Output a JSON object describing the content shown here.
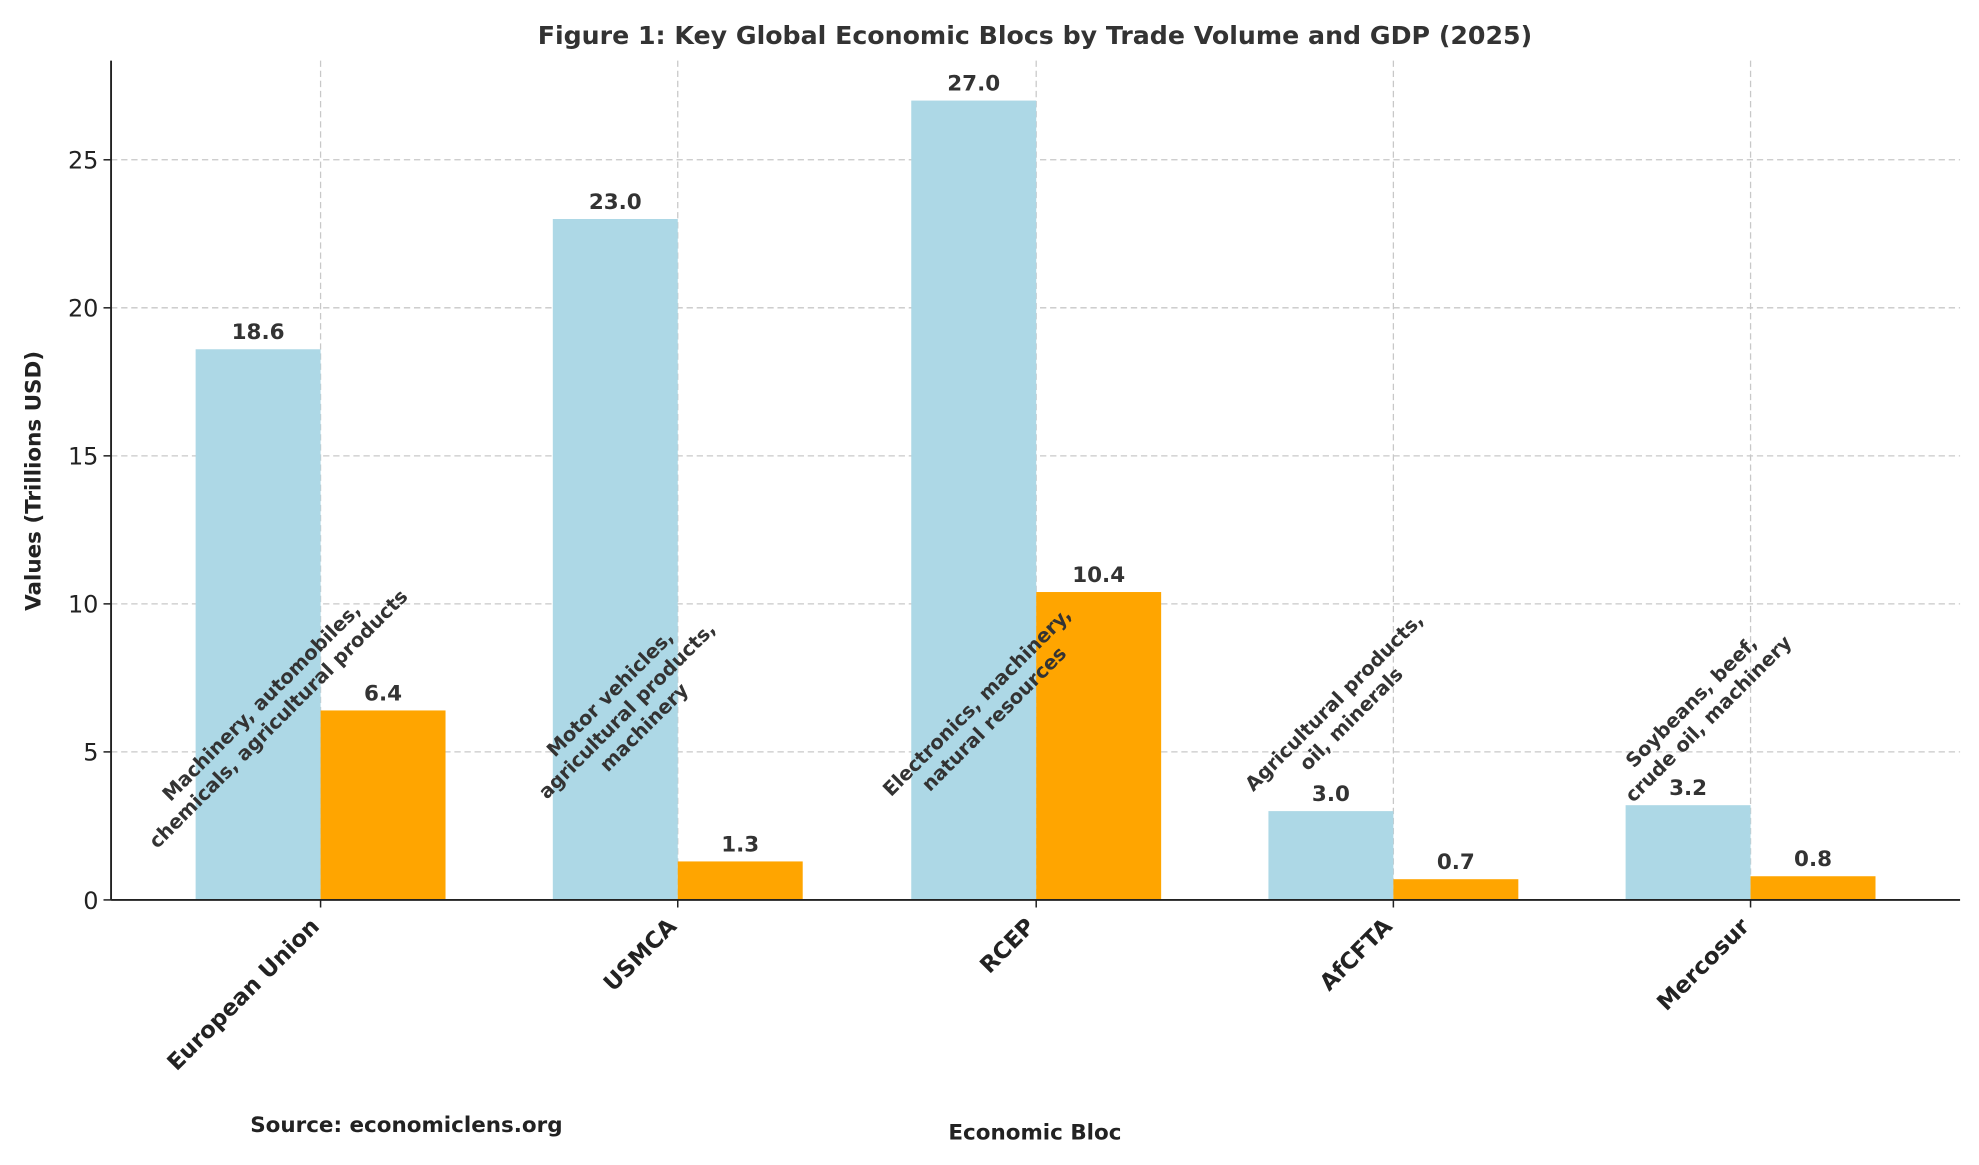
{
  "chart_data": {
    "type": "bar",
    "title": "Figure 1: Key Global Economic Blocs by Trade Volume and GDP (2025)",
    "xlabel": "Economic Bloc",
    "ylabel": "Values (Trillions USD)",
    "source": "Source: economiclens.org",
    "categories": [
      "European Union",
      "USMCA",
      "RCEP",
      "AfCFTA",
      "Mercosur"
    ],
    "series": [
      {
        "values": [
          18.6,
          23.0,
          27.0,
          3.0,
          3.2
        ],
        "color": "#add8e6"
      },
      {
        "values": [
          6.4,
          1.3,
          10.4,
          0.7,
          0.8
        ],
        "color": "#ffa500"
      }
    ],
    "annotations": [
      [
        "Machinery, automobiles,",
        "chemicals, agricultural products"
      ],
      [
        "Motor vehicles,",
        "agricultural products,",
        "machinery"
      ],
      [
        "Electronics, machinery,",
        "natural resources"
      ],
      [
        "Agricultural products,",
        "oil, minerals"
      ],
      [
        "Soybeans, beef,",
        "crude oil, machinery"
      ]
    ],
    "ylim": [
      0,
      28.35
    ],
    "yticks": [
      0,
      5,
      10,
      15,
      20,
      25
    ],
    "grid": true,
    "legend": "none"
  }
}
